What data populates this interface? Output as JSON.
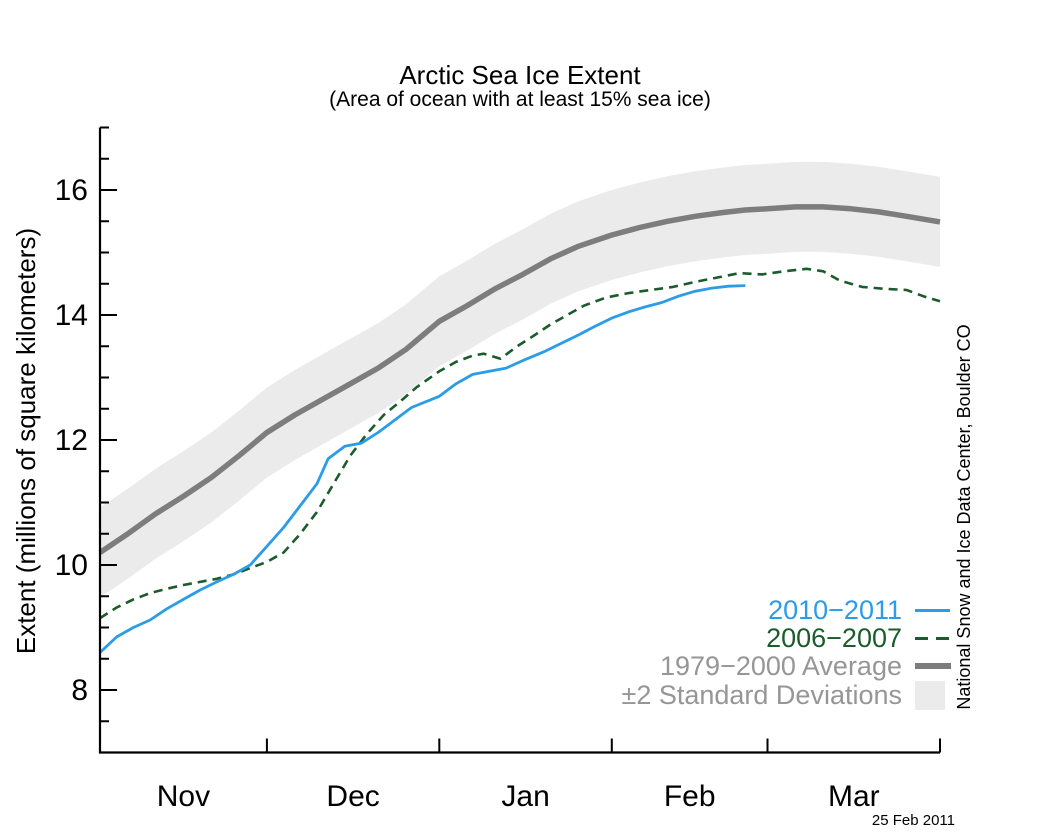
{
  "page": {
    "title": "Arctic Sea Ice Extent",
    "subtitle": "(Area of ocean with at least 15% sea ice)",
    "y_axis_title": "Extent (millions of square kilometers)",
    "credit": "National Snow and Ice Data Center, Boulder CO",
    "date_stamp": "25 Feb 2011"
  },
  "legend": {
    "items": [
      {
        "label": "2010−2011",
        "color": "#2A9CE8",
        "style": "solid-line"
      },
      {
        "label": "2006−2007",
        "color": "#1A5C2B",
        "style": "dashed-line"
      },
      {
        "label": "1979−2000 Average",
        "color": "#969696",
        "style": "thick-gray-line"
      },
      {
        "label": "±2 Standard Deviations",
        "color": "#969696",
        "style": "shaded-band"
      }
    ]
  },
  "chart_data": {
    "type": "line",
    "title": "Arctic Sea Ice Extent",
    "subtitle": "(Area of ocean with at least 15% sea ice)",
    "xlabel": "",
    "ylabel": "Extent (millions of square kilometers)",
    "ylim": [
      7,
      17
    ],
    "yticks_labeled": [
      8,
      10,
      12,
      14,
      16
    ],
    "ytick_minor_step": 0.5,
    "grid": false,
    "legend_position": "lower right",
    "x_unit": "days since Nov 1",
    "x_range_days": [
      0,
      151
    ],
    "x_month_boundaries_days": [
      30,
      61,
      92,
      120,
      151
    ],
    "x_month_labels": [
      {
        "label": "Nov",
        "mid_day": 15
      },
      {
        "label": "Dec",
        "mid_day": 45.5
      },
      {
        "label": "Jan",
        "mid_day": 76.5
      },
      {
        "label": "Feb",
        "mid_day": 106
      },
      {
        "label": "Mar",
        "mid_day": 135.5
      }
    ],
    "band_halfwidth_million_sq_km": 0.72,
    "colors": {
      "y2010_2011": "#2A9CE8",
      "y2006_2007": "#1A5C2B",
      "average": "#7D7D7D",
      "band": "#EBEBEB",
      "axis": "#000000",
      "legend_gray_text": "#969696"
    },
    "series": [
      {
        "id": "average",
        "name": "1979-2000 Average",
        "days": [
          0,
          5,
          10,
          15,
          20,
          25,
          30,
          35,
          40,
          45,
          50,
          55,
          61,
          66,
          71,
          76,
          81,
          86,
          92,
          97,
          102,
          107,
          112,
          116,
          120,
          125,
          130,
          135,
          140,
          145,
          151
        ],
        "values": [
          10.2,
          10.5,
          10.82,
          11.1,
          11.4,
          11.75,
          12.12,
          12.4,
          12.65,
          12.9,
          13.15,
          13.45,
          13.9,
          14.15,
          14.42,
          14.65,
          14.9,
          15.1,
          15.28,
          15.4,
          15.5,
          15.58,
          15.64,
          15.68,
          15.7,
          15.73,
          15.73,
          15.7,
          15.65,
          15.58,
          15.49
        ]
      },
      {
        "id": "y2006_2007",
        "name": "2006-2007",
        "days": [
          0,
          3,
          6,
          9,
          12,
          15,
          18,
          21,
          24,
          27,
          30,
          33,
          36,
          39,
          42,
          45,
          48,
          51,
          54,
          57,
          61,
          64,
          67,
          69,
          72,
          75,
          78,
          81,
          84,
          87,
          91,
          95,
          99,
          103,
          107,
          111,
          115,
          119,
          123,
          127,
          130,
          133,
          137,
          141,
          145,
          148,
          151
        ],
        "values": [
          9.15,
          9.32,
          9.45,
          9.55,
          9.62,
          9.68,
          9.73,
          9.78,
          9.85,
          9.95,
          10.05,
          10.2,
          10.5,
          10.85,
          11.3,
          11.75,
          12.1,
          12.4,
          12.62,
          12.85,
          13.1,
          13.25,
          13.35,
          13.38,
          13.3,
          13.5,
          13.67,
          13.85,
          14.0,
          14.15,
          14.28,
          14.35,
          14.4,
          14.45,
          14.53,
          14.6,
          14.67,
          14.65,
          14.7,
          14.74,
          14.7,
          14.55,
          14.45,
          14.42,
          14.4,
          14.3,
          14.22
        ]
      },
      {
        "id": "y2010_2011",
        "name": "2010-2011",
        "days": [
          0,
          3,
          6,
          9,
          12,
          15,
          18,
          21,
          24,
          27,
          30,
          33,
          36,
          39,
          41,
          44,
          47,
          50,
          53,
          56,
          61,
          64,
          67,
          70,
          73,
          76,
          80,
          83,
          86,
          89,
          92,
          95,
          98,
          101,
          104,
          107,
          110,
          113,
          116
        ],
        "values": [
          8.6,
          8.85,
          9.0,
          9.12,
          9.3,
          9.45,
          9.6,
          9.73,
          9.85,
          10.0,
          10.3,
          10.6,
          10.95,
          11.3,
          11.7,
          11.9,
          11.95,
          12.12,
          12.32,
          12.52,
          12.7,
          12.9,
          13.05,
          13.1,
          13.15,
          13.27,
          13.42,
          13.55,
          13.68,
          13.82,
          13.95,
          14.05,
          14.13,
          14.2,
          14.3,
          14.38,
          14.43,
          14.46,
          14.47
        ]
      }
    ]
  }
}
